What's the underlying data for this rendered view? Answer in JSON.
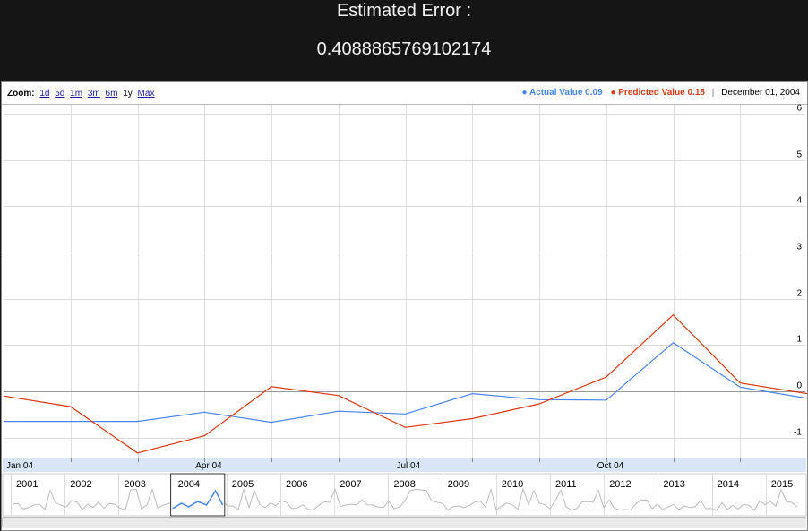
{
  "header": {
    "title": "Estimated Error :",
    "value": "0.4088865769102174"
  },
  "toolbar": {
    "zoom_label": "Zoom:",
    "zoom_options": [
      "1d",
      "5d",
      "1m",
      "3m",
      "6m",
      "1y",
      "Max"
    ],
    "zoom_selected": "1y"
  },
  "legend": {
    "actual_label": "Actual Value 0.09",
    "predicted_label": "Predicted Value 0.18",
    "date": "December 01, 2004"
  },
  "colors": {
    "actual": "#4684ee",
    "predicted": "#dc3912",
    "grid": "#dddddd",
    "axis_band": "#d9e6f7"
  },
  "chart_data": {
    "type": "line",
    "x": [
      "2004-01-01",
      "2004-02-01",
      "2004-03-01",
      "2004-04-01",
      "2004-05-01",
      "2004-06-01",
      "2004-07-01",
      "2004-08-01",
      "2004-09-01",
      "2004-10-01",
      "2004-11-01",
      "2004-12-01",
      "2005-01-01"
    ],
    "series": [
      {
        "name": "Actual Value",
        "values": [
          -0.65,
          -0.65,
          -0.65,
          -0.45,
          -0.67,
          -0.43,
          -0.49,
          -0.05,
          -0.18,
          -0.19,
          1.05,
          0.09,
          -0.15
        ]
      },
      {
        "name": "Predicted Value",
        "values": [
          -0.1,
          -0.33,
          -1.33,
          -0.96,
          0.1,
          -0.09,
          -0.78,
          -0.59,
          -0.27,
          0.31,
          1.65,
          0.18,
          -0.05
        ]
      }
    ],
    "x_tick_labels": [
      "Jan 04",
      "Apr 04",
      "Jul 04",
      "Oct 04"
    ],
    "y_ticks": [
      -1,
      0,
      1,
      2,
      3,
      4,
      5,
      6
    ],
    "ylim": [
      -1.5,
      6.3
    ],
    "grid": true,
    "navigator": {
      "years": [
        "2001",
        "2002",
        "2003",
        "2004",
        "2005",
        "2006",
        "2007",
        "2008",
        "2009",
        "2010",
        "2011",
        "2012",
        "2013",
        "2014",
        "2015"
      ],
      "selected": "2004"
    }
  }
}
